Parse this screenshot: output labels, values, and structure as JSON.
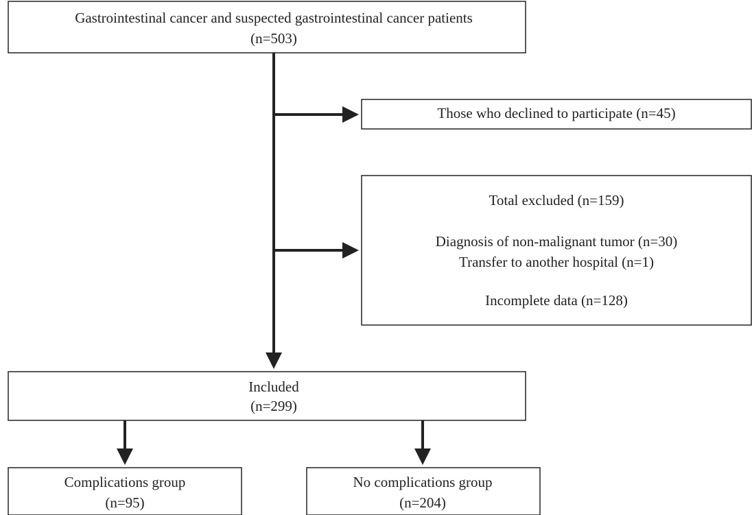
{
  "nodes": [
    {
      "lines": [
        "Gastrointestinal cancer and suspected gastrointestinal cancer patients",
        "(n=503)"
      ]
    },
    {
      "lines": [
        "Those who declined to participate (n=45)"
      ]
    },
    {
      "lines": [
        "Total excluded (n=159)",
        "Diagnosis of non-malignant tumor (n=30)",
        "Transfer to another hospital (n=1)",
        "Incomplete data (n=128)"
      ]
    },
    {
      "lines": [
        "Included",
        "(n=299)"
      ]
    },
    {
      "lines": [
        "Complications group",
        "(n=95)"
      ]
    },
    {
      "lines": [
        "No complications group",
        "(n=204)"
      ]
    }
  ]
}
